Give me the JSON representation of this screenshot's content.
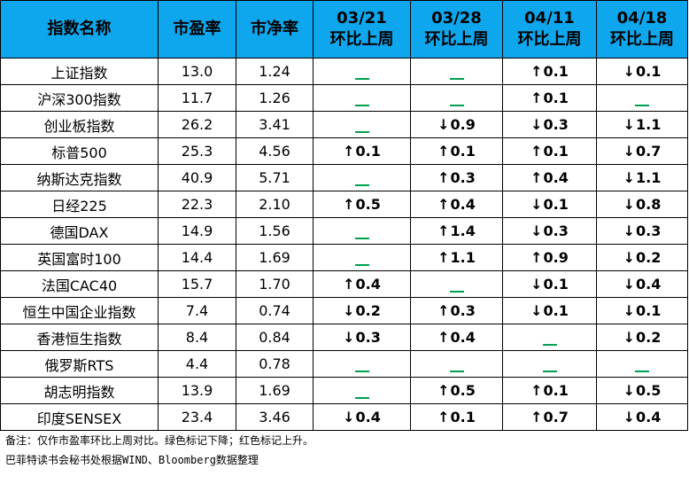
{
  "header": {
    "name": "指数名称",
    "pe": "市盈率",
    "pb": "市净率",
    "weeks": [
      {
        "date": "03/21",
        "label": "环比上周"
      },
      {
        "date": "03/28",
        "label": "环比上周"
      },
      {
        "date": "04/11",
        "label": "环比上周"
      },
      {
        "date": "04/18",
        "label": "环比上周"
      }
    ]
  },
  "rows": [
    {
      "name": "上证指数",
      "pe": "13.0",
      "pb": "1.24",
      "changes": [
        {
          "dir": "flat",
          "value": ""
        },
        {
          "dir": "flat",
          "value": ""
        },
        {
          "dir": "up",
          "value": "0.1"
        },
        {
          "dir": "down",
          "value": "0.1"
        }
      ]
    },
    {
      "name": "沪深300指数",
      "pe": "11.7",
      "pb": "1.26",
      "changes": [
        {
          "dir": "flat",
          "value": ""
        },
        {
          "dir": "flat",
          "value": ""
        },
        {
          "dir": "up",
          "value": "0.1"
        },
        {
          "dir": "flat",
          "value": ""
        }
      ]
    },
    {
      "name": "创业板指数",
      "pe": "26.2",
      "pb": "3.41",
      "changes": [
        {
          "dir": "flat",
          "value": ""
        },
        {
          "dir": "down",
          "value": "0.9"
        },
        {
          "dir": "down",
          "value": "0.3"
        },
        {
          "dir": "down",
          "value": "1.1"
        }
      ]
    },
    {
      "name": "标普500",
      "pe": "25.3",
      "pb": "4.56",
      "changes": [
        {
          "dir": "up",
          "value": "0.1"
        },
        {
          "dir": "up",
          "value": "0.1"
        },
        {
          "dir": "up",
          "value": "0.1"
        },
        {
          "dir": "down",
          "value": "0.7"
        }
      ]
    },
    {
      "name": "纳斯达克指数",
      "pe": "40.9",
      "pb": "5.71",
      "changes": [
        {
          "dir": "flat",
          "value": ""
        },
        {
          "dir": "up",
          "value": "0.3"
        },
        {
          "dir": "up",
          "value": "0.4"
        },
        {
          "dir": "down",
          "value": "1.1"
        }
      ]
    },
    {
      "name": "日经225",
      "pe": "22.3",
      "pb": "2.10",
      "changes": [
        {
          "dir": "up",
          "value": "0.5"
        },
        {
          "dir": "up",
          "value": "0.4"
        },
        {
          "dir": "down",
          "value": "0.1"
        },
        {
          "dir": "down",
          "value": "0.8"
        }
      ]
    },
    {
      "name": "德国DAX",
      "pe": "14.9",
      "pb": "1.56",
      "changes": [
        {
          "dir": "flat",
          "value": ""
        },
        {
          "dir": "up",
          "value": "1.4"
        },
        {
          "dir": "down",
          "value": "0.3"
        },
        {
          "dir": "down",
          "value": "0.3"
        }
      ]
    },
    {
      "name": "英国富时100",
      "pe": "14.4",
      "pb": "1.69",
      "changes": [
        {
          "dir": "flat",
          "value": ""
        },
        {
          "dir": "up",
          "value": "1.1"
        },
        {
          "dir": "up",
          "value": "0.9"
        },
        {
          "dir": "down",
          "value": "0.2"
        }
      ]
    },
    {
      "name": "法国CAC40",
      "pe": "15.7",
      "pb": "1.70",
      "changes": [
        {
          "dir": "up",
          "value": "0.4"
        },
        {
          "dir": "flat",
          "value": ""
        },
        {
          "dir": "down",
          "value": "0.1"
        },
        {
          "dir": "down",
          "value": "0.4"
        }
      ]
    },
    {
      "name": "恒生中国企业指数",
      "pe": "7.4",
      "pb": "0.74",
      "changes": [
        {
          "dir": "down",
          "value": "0.2"
        },
        {
          "dir": "up",
          "value": "0.3"
        },
        {
          "dir": "down",
          "value": "0.1"
        },
        {
          "dir": "down",
          "value": "0.1"
        }
      ]
    },
    {
      "name": "香港恒生指数",
      "pe": "8.4",
      "pb": "0.84",
      "changes": [
        {
          "dir": "down",
          "value": "0.3"
        },
        {
          "dir": "up",
          "value": "0.4"
        },
        {
          "dir": "flat",
          "value": ""
        },
        {
          "dir": "down",
          "value": "0.2"
        }
      ]
    },
    {
      "name": "俄罗斯RTS",
      "pe": "4.4",
      "pb": "0.78",
      "changes": [
        {
          "dir": "flat",
          "value": ""
        },
        {
          "dir": "flat",
          "value": ""
        },
        {
          "dir": "flat",
          "value": ""
        },
        {
          "dir": "flat",
          "value": ""
        }
      ]
    },
    {
      "name": "胡志明指数",
      "pe": "13.9",
      "pb": "1.69",
      "changes": [
        {
          "dir": "flat",
          "value": ""
        },
        {
          "dir": "up",
          "value": "0.5"
        },
        {
          "dir": "up",
          "value": "0.1"
        },
        {
          "dir": "down",
          "value": "0.5"
        }
      ]
    },
    {
      "name": "印度SENSEX",
      "pe": "23.4",
      "pb": "3.46",
      "changes": [
        {
          "dir": "down",
          "value": "0.4"
        },
        {
          "dir": "up",
          "value": "0.1"
        },
        {
          "dir": "up",
          "value": "0.7"
        },
        {
          "dir": "down",
          "value": "0.4"
        }
      ]
    }
  ],
  "colors": {
    "header_bg": "#0ea6ec",
    "up": "#ff0000",
    "down": "#00a050"
  },
  "notes": {
    "line1": "备注：仅作市盈率环比上周对比。绿色标记下降；红色标记上升。",
    "line2": "巴菲特读书会秘书处根据WIND、Bloomberg数据整理"
  }
}
